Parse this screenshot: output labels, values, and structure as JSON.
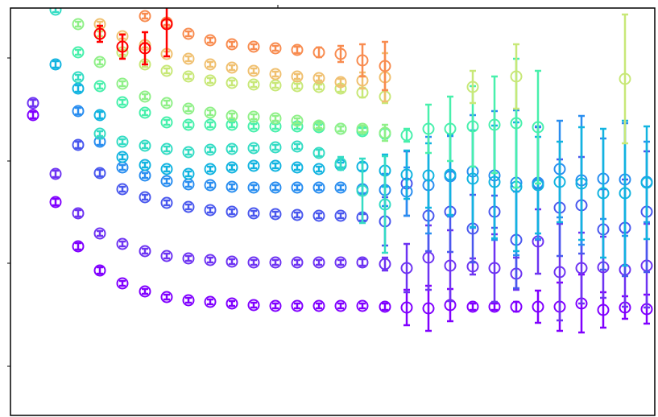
{
  "chart_data": {
    "type": "errorbar",
    "x": [
      28,
      56,
      84,
      111,
      139,
      167,
      194,
      221,
      248,
      275,
      302,
      329,
      356,
      383,
      410,
      437,
      465,
      492,
      519,
      546,
      574,
      601,
      628,
      655,
      682,
      709,
      736,
      763,
      790
    ],
    "xlim": [
      0,
      800
    ],
    "ylim": [
      0,
      506
    ],
    "xticks": [
      332
    ],
    "yticks": [
      61,
      189,
      316,
      444
    ],
    "grid": false,
    "series": [
      {
        "color": "#8000ff",
        "values": [
          373,
          265,
          210,
          180,
          164,
          154,
          147,
          143,
          141,
          139,
          137,
          136,
          136,
          136,
          136,
          136,
          135,
          134,
          133,
          137,
          135,
          135,
          135,
          135,
          135,
          139,
          131,
          134,
          132
        ],
        "errors": [
          4,
          4,
          4,
          4,
          3,
          3,
          3,
          3,
          3,
          3,
          3,
          3,
          3,
          3,
          3,
          3,
          4,
          22,
          28,
          20,
          4,
          4,
          6,
          20,
          30,
          36,
          22,
          14,
          18
        ]
      },
      {
        "color": "#6e34f2",
        "values": [
          388,
          300,
          251,
          226,
          213,
          204,
          198,
          195,
          193,
          191,
          190,
          190,
          190,
          190,
          190,
          190,
          188,
          183,
          196,
          186,
          185,
          183,
          176,
          216,
          178,
          183,
          184,
          181,
          186
        ],
        "errors": [
          4,
          4,
          4,
          3,
          3,
          3,
          3,
          3,
          3,
          3,
          3,
          3,
          3,
          3,
          3,
          4,
          8,
          30,
          40,
          44,
          10,
          42,
          20,
          40,
          60,
          44,
          38,
          46,
          52
        ]
      },
      {
        "color": "#4a58ee",
        "values": [
          null,
          null,
          336,
          301,
          281,
          271,
          264,
          259,
          255,
          253,
          251,
          250,
          249,
          248,
          248,
          246,
          241,
          288,
          248,
          253,
          232,
          253,
          218,
          288,
          258,
          261,
          231,
          233,
          253
        ],
        "errors": [
          null,
          null,
          4,
          4,
          3,
          3,
          3,
          3,
          3,
          3,
          3,
          3,
          3,
          3,
          3,
          4,
          30,
          40,
          44,
          50,
          42,
          20,
          60,
          70,
          60,
          60,
          50,
          60,
          75
        ]
      },
      {
        "color": "#2a8ef0",
        "values": [
          null,
          null,
          378,
          340,
          308,
          298,
          291,
          287,
          286,
          284,
          283,
          283,
          283,
          283,
          283,
          281,
          280,
          278,
          286,
          297,
          303,
          298,
          289,
          289,
          306,
          292,
          294,
          293,
          290
        ],
        "errors": [
          null,
          null,
          4,
          4,
          3,
          3,
          3,
          3,
          3,
          3,
          3,
          3,
          3,
          3,
          3,
          5,
          20,
          30,
          60,
          50,
          70,
          80,
          90,
          70,
          60,
          80,
          50,
          70,
          50
        ]
      },
      {
        "color": "#12b4e0",
        "values": [
          null,
          436,
          406,
          373,
          321,
          311,
          306,
          300,
          306,
          308,
          310,
          310,
          308,
          306,
          311,
          309,
          304,
          299,
          298,
          299,
          294,
          290,
          284,
          286,
          290,
          288,
          276,
          276,
          289
        ],
        "errors": [
          null,
          4,
          4,
          4,
          3,
          3,
          3,
          3,
          3,
          3,
          3,
          3,
          3,
          3,
          3,
          5,
          20,
          30,
          40,
          50,
          60,
          70,
          80,
          60,
          50,
          70,
          80,
          90,
          70
        ]
      },
      {
        "color": "#34dcc4",
        "values": [
          null,
          504,
          420,
          350,
          340,
          335,
          331,
          327,
          330,
          331,
          332,
          333,
          334,
          326,
          313,
          279,
          262,
          null,
          null,
          null,
          null,
          null,
          null,
          null,
          null,
          null,
          null,
          null,
          null
        ],
        "errors": [
          null,
          3,
          3,
          3,
          3,
          3,
          3,
          3,
          3,
          3,
          3,
          3,
          3,
          4,
          8,
          40,
          60,
          null,
          null,
          null,
          null,
          null,
          null,
          null,
          null,
          null,
          null,
          null,
          null
        ]
      },
      {
        "color": "#48f0ac",
        "values": [
          null,
          null,
          451,
          409,
          389,
          376,
          364,
          361,
          361,
          361,
          359,
          359,
          359,
          358,
          356,
          353,
          350,
          348,
          356,
          356,
          359,
          361,
          363,
          358,
          null,
          null,
          null,
          null,
          null
        ],
        "errors": [
          null,
          null,
          3,
          3,
          3,
          3,
          3,
          3,
          3,
          3,
          3,
          3,
          3,
          3,
          3,
          4,
          6,
          8,
          30,
          40,
          50,
          60,
          80,
          70,
          null,
          null,
          null,
          null,
          null
        ]
      },
      {
        "color": "#90f088",
        "values": [
          null,
          null,
          486,
          439,
          412,
          396,
          388,
          381,
          376,
          372,
          371,
          369,
          366,
          360,
          356,
          356,
          351,
          null,
          null,
          null,
          null,
          null,
          null,
          null,
          null,
          null,
          null,
          null,
          null
        ],
        "errors": [
          null,
          null,
          3,
          3,
          3,
          3,
          3,
          3,
          3,
          3,
          3,
          3,
          3,
          3,
          3,
          4,
          10,
          null,
          null,
          null,
          null,
          null,
          null,
          null,
          null,
          null,
          null,
          null,
          null
        ]
      },
      {
        "color": "#c8e878",
        "values": [
          null,
          null,
          null,
          474,
          451,
          436,
          428,
          421,
          416,
          413,
          411,
          410,
          409,
          408,
          406,
          401,
          396,
          null,
          null,
          null,
          408,
          null,
          421,
          null,
          null,
          null,
          null,
          418,
          null
        ],
        "errors": [
          null,
          null,
          null,
          3,
          3,
          3,
          3,
          3,
          3,
          3,
          3,
          3,
          3,
          3,
          4,
          6,
          8,
          null,
          null,
          null,
          20,
          null,
          40,
          null,
          null,
          null,
          null,
          80,
          null
        ]
      },
      {
        "color": "#f0c070",
        "values": [
          null,
          null,
          null,
          486,
          471,
          460,
          449,
          443,
          436,
          432,
          428,
          424,
          421,
          419,
          414,
          416,
          420,
          null,
          null,
          null,
          null,
          null,
          null,
          null,
          null,
          null,
          null,
          null,
          null
        ],
        "errors": [
          null,
          null,
          null,
          3,
          3,
          3,
          3,
          3,
          3,
          3,
          3,
          3,
          3,
          3,
          4,
          10,
          30,
          null,
          null,
          null,
          null,
          null,
          null,
          null,
          null,
          null,
          null,
          null,
          null
        ]
      },
      {
        "color": "#f88c50",
        "values": [
          null,
          null,
          null,
          null,
          null,
          496,
          488,
          474,
          466,
          461,
          458,
          456,
          454,
          451,
          449,
          441,
          434,
          null,
          null,
          null,
          null,
          null,
          null,
          null,
          null,
          null,
          null,
          null,
          null
        ],
        "errors": [
          null,
          null,
          null,
          null,
          null,
          3,
          3,
          3,
          3,
          3,
          3,
          3,
          4,
          6,
          10,
          20,
          30,
          null,
          null,
          null,
          null,
          null,
          null,
          null,
          null,
          null,
          null,
          null,
          null
        ]
      },
      {
        "color": "#ff0000",
        "values": [
          null,
          null,
          null,
          474,
          458,
          456,
          486,
          null,
          null,
          null,
          null,
          null,
          null,
          null,
          null,
          null,
          null,
          null,
          null,
          null,
          null,
          null,
          null,
          null,
          null,
          null,
          null,
          null,
          null
        ],
        "errors": [
          null,
          null,
          null,
          10,
          15,
          20,
          40,
          null,
          null,
          null,
          null,
          null,
          null,
          null,
          null,
          null,
          null,
          null,
          null,
          null,
          null,
          null,
          null,
          null,
          null,
          null,
          null,
          null,
          null
        ]
      }
    ]
  }
}
